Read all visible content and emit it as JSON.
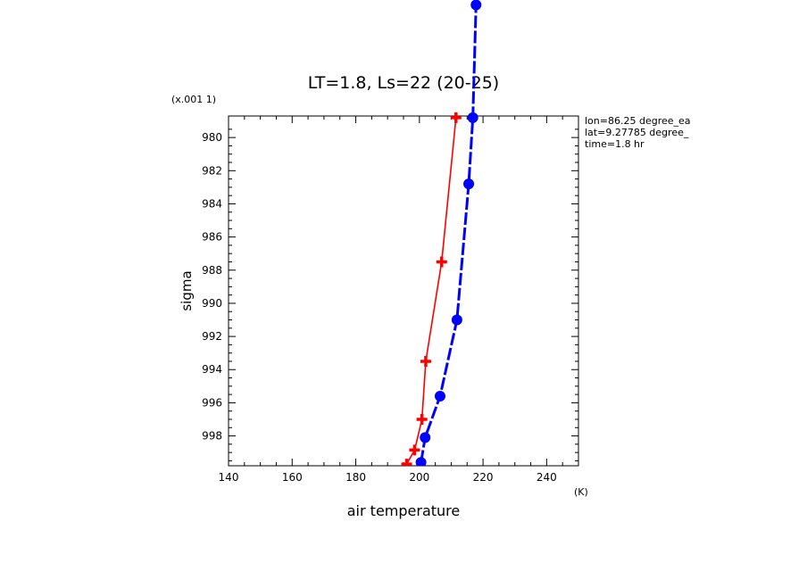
{
  "chart_data": {
    "type": "line",
    "title": "LT=1.8, Ls=22 (20-25)",
    "xlabel": "air temperature",
    "ylabel": "sigma",
    "x_unit": "(K)",
    "y_scale_label": "(x.001 1)",
    "xlim": [
      140,
      250
    ],
    "ylim": [
      999.8,
      978.7
    ],
    "x_ticks": [
      140,
      160,
      180,
      200,
      220,
      240
    ],
    "y_ticks": [
      980,
      982,
      984,
      986,
      988,
      990,
      992,
      994,
      996,
      998
    ],
    "x_tick_labels": [
      "140",
      "160",
      "180",
      "200",
      "220",
      "240"
    ],
    "y_tick_labels": [
      "980",
      "982",
      "984",
      "986",
      "988",
      "990",
      "992",
      "994",
      "996",
      "998"
    ],
    "grid": false,
    "annotations": [
      "lon=86.25 degree_ea",
      "lat=9.27785 degree_",
      "time=1.8 hr"
    ],
    "series": [
      {
        "color": "#ff0000",
        "marker": "plus",
        "points": [
          {
            "x": 196.0,
            "y": 999.7
          },
          {
            "x": 198.5,
            "y": 998.85
          },
          {
            "x": 200.8,
            "y": 997.0
          },
          {
            "x": 202.0,
            "y": 993.5
          },
          {
            "x": 207.0,
            "y": 987.5
          },
          {
            "x": 211.5,
            "y": 978.8
          }
        ]
      },
      {
        "color": "#0000ff",
        "marker": "circle",
        "points": [
          {
            "x": 200.5,
            "y": 999.6
          },
          {
            "x": 201.8,
            "y": 998.1
          },
          {
            "x": 206.5,
            "y": 995.6
          },
          {
            "x": 211.8,
            "y": 991.0
          },
          {
            "x": 215.5,
            "y": 982.8
          },
          {
            "x": 216.8,
            "y": 978.8
          },
          {
            "x": 217.8,
            "y": 972.0
          }
        ]
      }
    ]
  }
}
